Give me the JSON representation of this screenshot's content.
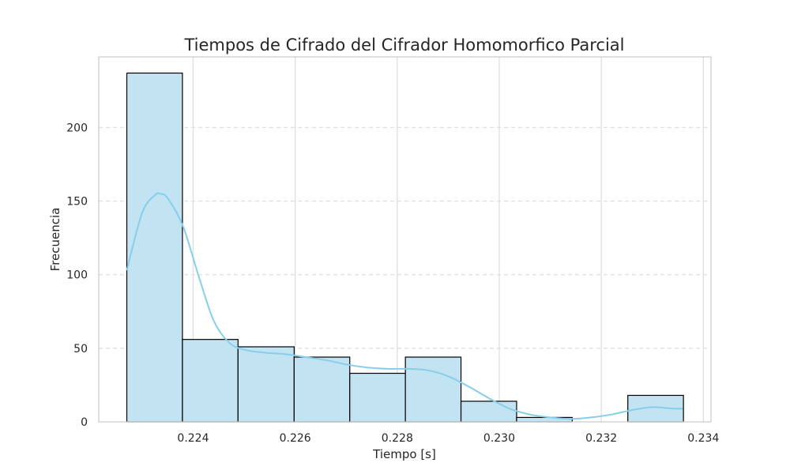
{
  "chart_data": {
    "type": "bar",
    "title": "Tiempos de Cifrado del Cifrador Homomorfico Parcial",
    "xlabel": "Tiempo [s]",
    "ylabel": "Frecuencia",
    "xlim": [
      0.22215,
      0.23415
    ],
    "ylim": [
      0,
      248
    ],
    "xticks": [
      0.224,
      0.226,
      0.228,
      0.23,
      0.232,
      0.234
    ],
    "xtick_labels": [
      "0.224",
      "0.226",
      "0.228",
      "0.230",
      "0.232",
      "0.234"
    ],
    "yticks": [
      0,
      50,
      100,
      150,
      200
    ],
    "ytick_labels": [
      "0",
      "50",
      "100",
      "150",
      "200"
    ],
    "grid": true,
    "bins": [
      {
        "start": 0.2227,
        "end": 0.22379,
        "count": 237
      },
      {
        "start": 0.22379,
        "end": 0.22488,
        "count": 56
      },
      {
        "start": 0.22488,
        "end": 0.22598,
        "count": 51
      },
      {
        "start": 0.22598,
        "end": 0.22707,
        "count": 44
      },
      {
        "start": 0.22707,
        "end": 0.22816,
        "count": 33
      },
      {
        "start": 0.22816,
        "end": 0.22925,
        "count": 44
      },
      {
        "start": 0.22925,
        "end": 0.23034,
        "count": 14
      },
      {
        "start": 0.23034,
        "end": 0.23143,
        "count": 3
      },
      {
        "start": 0.23143,
        "end": 0.23252,
        "count": 0
      },
      {
        "start": 0.23252,
        "end": 0.23361,
        "count": 18
      }
    ],
    "kde": {
      "x": [
        0.2227,
        0.223,
        0.22325,
        0.22335,
        0.2235,
        0.2238,
        0.2241,
        0.2244,
        0.2247,
        0.225,
        0.2254,
        0.2258,
        0.2262,
        0.2266,
        0.227,
        0.2274,
        0.2278,
        0.2282,
        0.2286,
        0.229,
        0.2294,
        0.2298,
        0.2302,
        0.2306,
        0.231,
        0.2314,
        0.2318,
        0.2322,
        0.2326,
        0.233,
        0.2334,
        0.2336
      ],
      "y": [
        103,
        142,
        154,
        155,
        152,
        133,
        100,
        69,
        54,
        49,
        47,
        46,
        44,
        42,
        39,
        37,
        36,
        36,
        35,
        31,
        24,
        16,
        9,
        5,
        3,
        2,
        3,
        5,
        8,
        10,
        9,
        9
      ]
    },
    "colors": {
      "bar_fill": "#c2e3f2",
      "bar_edge": "#000000",
      "kde_line": "#87ceeb",
      "grid": "#dcdcdc",
      "frame": "#cccccc"
    }
  }
}
